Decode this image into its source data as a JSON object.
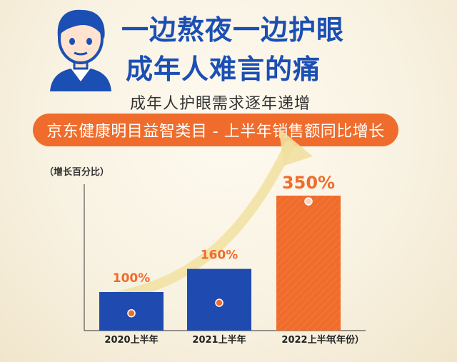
{
  "header": {
    "title_line1": "一边熬夜一边护眼",
    "title_line2": "成年人难言的痛",
    "subtitle": "成年人护眼需求逐年递增"
  },
  "banner": {
    "text": "京东健康明目益智类目 - 上半年销售额同比增长"
  },
  "icons": {
    "avatar": "person-portrait-icon",
    "trend": "upward-arrow-icon"
  },
  "colors": {
    "title": "#1b4fb4",
    "bar": "#1f4bb0",
    "highlight": "#ef6c2c",
    "arrow": "#f1e0a0"
  },
  "chart_data": {
    "type": "bar",
    "ylabel": "（增长百分比）",
    "xlabel": "（年份）",
    "categories": [
      "2020上半年",
      "2021上半年",
      "2022上半年"
    ],
    "values": [
      100,
      160,
      350
    ],
    "value_labels": [
      "100%",
      "160%",
      "350%"
    ],
    "units": "%",
    "highlight_index": 2,
    "grid": false,
    "legend": "none"
  }
}
